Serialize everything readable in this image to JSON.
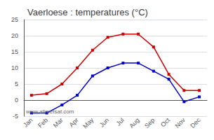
{
  "chart_data": {
    "type": "line",
    "title": "Vaerloese : temperatures (°C)",
    "categories": [
      "Jan",
      "Feb",
      "Mar",
      "Apr",
      "May",
      "Jun",
      "Jul",
      "Aug",
      "Sep",
      "Oct",
      "Nov",
      "Dec"
    ],
    "series": [
      {
        "color": "#cc0000",
        "values": [
          1.5,
          2.0,
          5.0,
          10.0,
          15.5,
          19.5,
          20.5,
          20.5,
          16.5,
          8.0,
          3.0,
          3.0
        ]
      },
      {
        "color": "#0000cc",
        "values": [
          -4.0,
          -4.0,
          -1.5,
          1.5,
          7.5,
          10.0,
          11.5,
          11.5,
          9.0,
          6.5,
          -0.5,
          1.0
        ]
      }
    ],
    "ylim": [
      -5,
      25
    ],
    "yticks": [
      -5,
      0,
      5,
      10,
      15,
      20,
      25
    ],
    "grid": true,
    "marker": "square",
    "annotation": "www.allmetsat.com"
  }
}
